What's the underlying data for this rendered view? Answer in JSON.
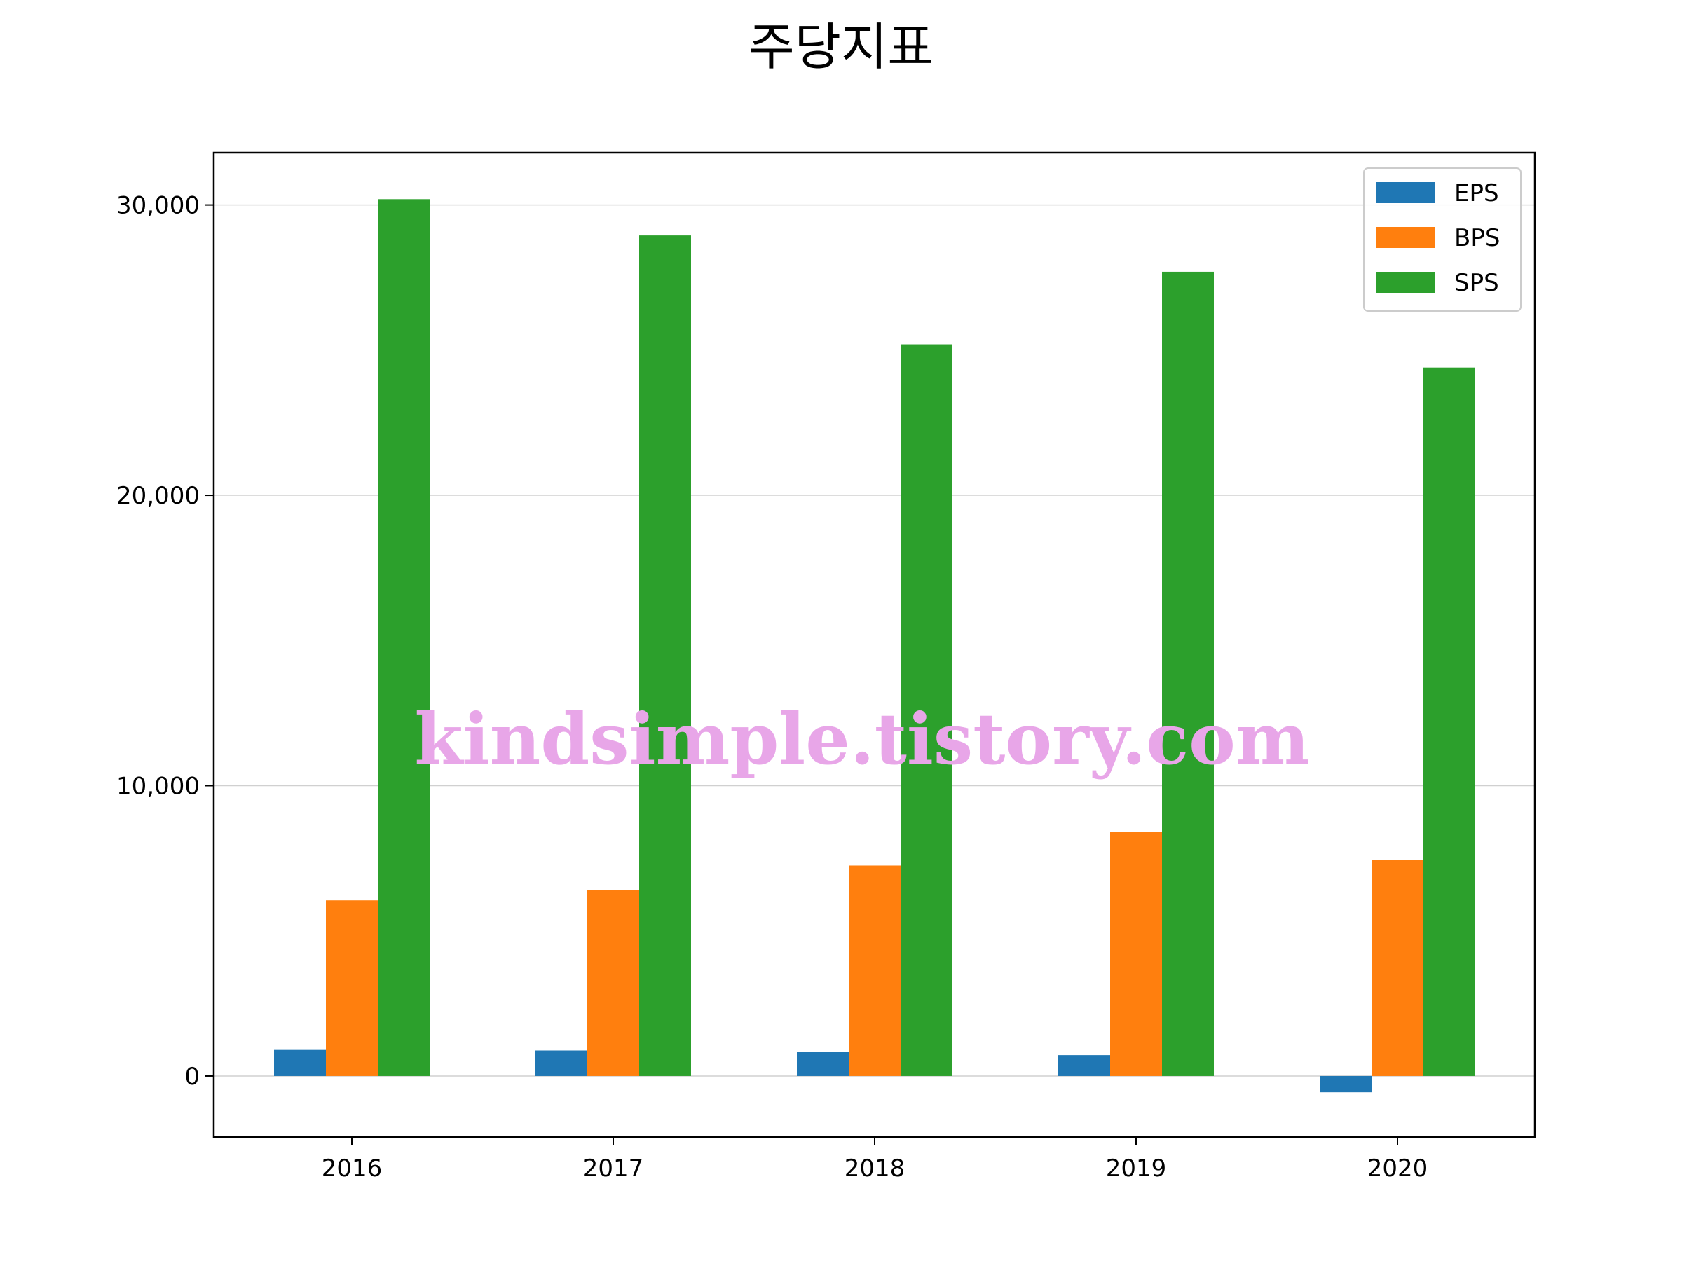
{
  "chart_data": {
    "type": "bar",
    "title": "주당지표",
    "xlabel": "",
    "ylabel": "",
    "categories": [
      "2016",
      "2017",
      "2018",
      "2019",
      "2020"
    ],
    "series": [
      {
        "name": "EPS",
        "color": "#1f77b4",
        "values": [
          900,
          880,
          820,
          720,
          -560
        ]
      },
      {
        "name": "BPS",
        "color": "#ff7f0e",
        "values": [
          6050,
          6400,
          7250,
          8400,
          7450
        ]
      },
      {
        "name": "SPS",
        "color": "#2ca02c",
        "values": [
          30200,
          28950,
          25200,
          27700,
          24400
        ]
      }
    ],
    "ylim": [
      -2100,
      31800
    ],
    "yticks": [
      0,
      10000,
      20000,
      30000
    ],
    "ytick_labels": [
      "0",
      "10,000",
      "20,000",
      "30,000"
    ],
    "grid": "y",
    "legend_position": "top-right",
    "watermark": "kindsimple.tistory.com"
  }
}
